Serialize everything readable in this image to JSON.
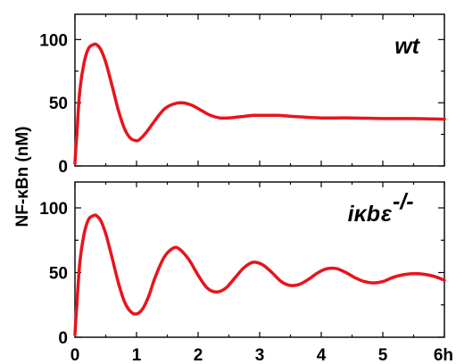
{
  "chart_data": [
    {
      "type": "line",
      "panel_label": "wt",
      "color": "#e8141c",
      "xlim": [
        0,
        6
      ],
      "ylim": [
        0,
        120
      ],
      "yticks_major": [
        0,
        50,
        100
      ],
      "ytick_labels": [
        "0",
        "50",
        "100"
      ],
      "yticks_minor": [
        25,
        75
      ],
      "xticks_major": [
        0,
        1,
        2,
        3,
        4,
        5,
        6
      ],
      "xtick_labels": [],
      "grid": false,
      "series": [
        {
          "x": [
            0,
            0.03,
            0.08,
            0.15,
            0.22,
            0.3,
            0.35,
            0.42,
            0.5,
            0.6,
            0.7,
            0.8,
            0.9,
            1.0,
            1.05,
            1.15,
            1.3,
            1.45,
            1.6,
            1.75,
            1.9,
            2.05,
            2.2,
            2.35,
            2.5,
            2.7,
            2.9,
            3.1,
            3.3,
            3.6,
            4.0,
            4.5,
            5.0,
            5.5,
            6.0
          ],
          "y": [
            2,
            25,
            60,
            82,
            93,
            96,
            96,
            92,
            82,
            64,
            45,
            30,
            22,
            20,
            21,
            26,
            36,
            45,
            49,
            50,
            48,
            44,
            40,
            38,
            38,
            39,
            40,
            40,
            40,
            39,
            38,
            38,
            37.5,
            37.5,
            37
          ]
        }
      ]
    },
    {
      "type": "line",
      "panel_label_base": "iκb",
      "panel_label_sub": "ε",
      "panel_label_sup": "-/-",
      "color": "#e8141c",
      "xlim": [
        0,
        6
      ],
      "ylim": [
        0,
        120
      ],
      "yticks_major": [
        0,
        50,
        100
      ],
      "ytick_labels": [
        "0",
        "50",
        "100"
      ],
      "yticks_minor": [
        25,
        75
      ],
      "xticks_major": [
        0,
        1,
        2,
        3,
        4,
        5,
        6
      ],
      "xtick_labels": [
        "0",
        "1",
        "2",
        "3",
        "4",
        "5",
        "6h"
      ],
      "grid": false,
      "series": [
        {
          "x": [
            0,
            0.03,
            0.08,
            0.15,
            0.22,
            0.3,
            0.35,
            0.42,
            0.5,
            0.6,
            0.7,
            0.8,
            0.9,
            1.0,
            1.1,
            1.2,
            1.3,
            1.45,
            1.6,
            1.7,
            1.85,
            2.0,
            2.15,
            2.3,
            2.45,
            2.6,
            2.75,
            2.9,
            3.05,
            3.2,
            3.35,
            3.5,
            3.65,
            3.8,
            3.95,
            4.1,
            4.25,
            4.4,
            4.55,
            4.7,
            4.85,
            5.0,
            5.15,
            5.3,
            5.45,
            5.6,
            5.75,
            5.9,
            6.0
          ],
          "y": [
            2,
            25,
            58,
            80,
            91,
            94,
            94,
            90,
            80,
            62,
            43,
            28,
            20,
            18,
            22,
            32,
            46,
            62,
            69,
            68,
            60,
            48,
            38,
            35,
            38,
            46,
            54,
            58,
            56,
            50,
            43,
            40,
            41,
            45,
            50,
            53,
            53,
            50,
            46,
            43,
            42,
            43,
            46,
            48,
            49,
            49,
            48,
            46,
            44
          ]
        }
      ]
    }
  ],
  "shared": {
    "ylabel": "NF-κBn (nM)"
  }
}
